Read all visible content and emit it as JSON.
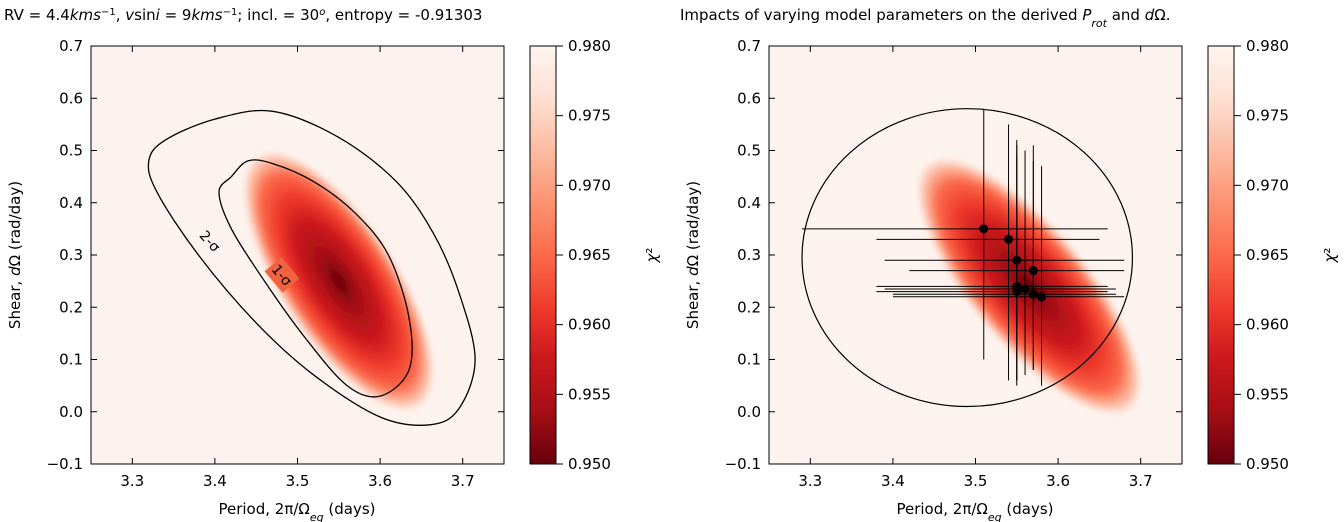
{
  "chart_data": [
    {
      "type": "heatmap",
      "title": "RV = 4.4kms⁻¹, vsini = 9kms⁻¹; incl. = 30ᵒ, entropy  = -0.91303",
      "xlabel": "Period, 2π/Ωeq (days)",
      "ylabel": "Shear, dΩ (rad/day)",
      "xlim": [
        3.25,
        3.75
      ],
      "ylim": [
        -0.1,
        0.7
      ],
      "xticks": [
        3.3,
        3.4,
        3.5,
        3.6,
        3.7
      ],
      "yticks": [
        -0.1,
        0.0,
        0.1,
        0.2,
        0.3,
        0.4,
        0.5,
        0.6,
        0.7
      ],
      "colorbar": {
        "label": "χ²",
        "range": [
          0.95,
          0.98
        ],
        "ticks": [
          0.95,
          0.955,
          0.96,
          0.965,
          0.97,
          0.975,
          0.98
        ],
        "colormap": "Reds_r"
      },
      "minimum": {
        "x": 3.55,
        "y": 0.25,
        "value": 0.95
      },
      "contours": [
        {
          "label": "1-σ",
          "points": [
            [
              3.42,
              0.45
            ],
            [
              3.44,
              0.48
            ],
            [
              3.47,
              0.475
            ],
            [
              3.52,
              0.44
            ],
            [
              3.57,
              0.38
            ],
            [
              3.61,
              0.3
            ],
            [
              3.635,
              0.18
            ],
            [
              3.635,
              0.08
            ],
            [
              3.6,
              0.03
            ],
            [
              3.56,
              0.05
            ],
            [
              3.51,
              0.14
            ],
            [
              3.46,
              0.25
            ],
            [
              3.42,
              0.35
            ],
            [
              3.405,
              0.42
            ]
          ]
        },
        {
          "label": "2-σ",
          "points": [
            [
              3.34,
              0.52
            ],
            [
              3.4,
              0.56
            ],
            [
              3.47,
              0.575
            ],
            [
              3.55,
              0.525
            ],
            [
              3.62,
              0.44
            ],
            [
              3.665,
              0.34
            ],
            [
              3.695,
              0.23
            ],
            [
              3.715,
              0.1
            ],
            [
              3.695,
              0.005
            ],
            [
              3.66,
              -0.025
            ],
            [
              3.6,
              -0.01
            ],
            [
              3.52,
              0.07
            ],
            [
              3.45,
              0.17
            ],
            [
              3.38,
              0.3
            ],
            [
              3.33,
              0.42
            ],
            [
              3.32,
              0.48
            ]
          ]
        }
      ]
    },
    {
      "type": "heatmap",
      "title": "Impacts of varying model parameters on the derived Prot and dΩ.",
      "xlabel": "Period, 2π/Ωeq (days)",
      "ylabel": "Shear, dΩ (rad/day)",
      "xlim": [
        3.25,
        3.75
      ],
      "ylim": [
        -0.1,
        0.7
      ],
      "xticks": [
        3.3,
        3.4,
        3.5,
        3.6,
        3.7
      ],
      "yticks": [
        -0.1,
        0.0,
        0.1,
        0.2,
        0.3,
        0.4,
        0.5,
        0.6,
        0.7
      ],
      "colorbar": {
        "label": "χ²",
        "range": [
          0.95,
          0.98
        ],
        "ticks": [
          0.95,
          0.955,
          0.96,
          0.965,
          0.97,
          0.975,
          0.98
        ],
        "colormap": "Reds_r"
      },
      "minimum": {
        "x": 3.565,
        "y": 0.24,
        "value": 0.95
      },
      "ellipse": {
        "cx": 3.49,
        "cy": 0.295,
        "rx": 0.2,
        "ry": 0.285
      },
      "points": [
        {
          "x": 3.51,
          "y": 0.35,
          "xerr": [
            3.29,
            3.66
          ],
          "yerr": [
            0.1,
            0.58
          ]
        },
        {
          "x": 3.54,
          "y": 0.33,
          "xerr": [
            3.38,
            3.65
          ],
          "yerr": [
            0.06,
            0.55
          ]
        },
        {
          "x": 3.55,
          "y": 0.29,
          "xerr": [
            3.39,
            3.68
          ],
          "yerr": [
            0.06,
            0.52
          ]
        },
        {
          "x": 3.57,
          "y": 0.27,
          "xerr": [
            3.42,
            3.68
          ],
          "yerr": [
            0.08,
            0.51
          ]
        },
        {
          "x": 3.55,
          "y": 0.24,
          "xerr": [
            3.38,
            3.66
          ],
          "yerr": [
            0.05,
            0.51
          ]
        },
        {
          "x": 3.56,
          "y": 0.235,
          "xerr": [
            3.39,
            3.67
          ],
          "yerr": [
            0.07,
            0.5
          ]
        },
        {
          "x": 3.55,
          "y": 0.23,
          "xerr": [
            3.38,
            3.66
          ],
          "yerr": [
            0.06,
            0.49
          ]
        },
        {
          "x": 3.57,
          "y": 0.225,
          "xerr": [
            3.4,
            3.67
          ],
          "yerr": [
            0.08,
            0.48
          ]
        },
        {
          "x": 3.58,
          "y": 0.22,
          "xerr": [
            3.4,
            3.68
          ],
          "yerr": [
            0.05,
            0.47
          ]
        }
      ]
    }
  ]
}
